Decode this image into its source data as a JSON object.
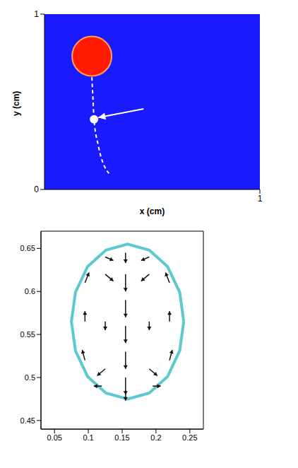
{
  "chart_data": [
    {
      "type": "schematic",
      "xlabel": "x (cm)",
      "ylabel": "y (cm)",
      "xlim": [
        0,
        1
      ],
      "ylim": [
        0,
        1
      ],
      "xticks": [
        1
      ],
      "yticks": [
        0,
        1
      ],
      "drop": {
        "x": 0.22,
        "y": 0.76
      },
      "trajectory": {
        "x": [
          0.22,
          0.225,
          0.23,
          0.25,
          0.3
        ],
        "y": [
          0.64,
          0.52,
          0.4,
          0.25,
          0.09
        ],
        "line_style": "dashed"
      },
      "tracked_point": {
        "x": 0.23,
        "y": 0.4
      },
      "arrow": {
        "x": [
          0.46,
          0.25
        ],
        "y": [
          0.46,
          0.41
        ]
      }
    },
    {
      "type": "quiver",
      "xlim": [
        0.03,
        0.27
      ],
      "ylim": [
        0.44,
        0.67
      ],
      "xticks": [
        0.05,
        0.1,
        0.15,
        0.2,
        0.25
      ],
      "yticks": [
        0.45,
        0.5,
        0.55,
        0.6,
        0.65
      ],
      "boundary": {
        "x": [
          0.241,
          0.235,
          0.217,
          0.19,
          0.158,
          0.126,
          0.099,
          0.081,
          0.075,
          0.081,
          0.099,
          0.126,
          0.158,
          0.19,
          0.217,
          0.235,
          0.241
        ],
        "y": [
          0.565,
          0.599,
          0.629,
          0.648,
          0.655,
          0.648,
          0.629,
          0.599,
          0.565,
          0.531,
          0.501,
          0.482,
          0.475,
          0.482,
          0.501,
          0.531,
          0.565
        ]
      },
      "vectors": {
        "x": [
          0.155,
          0.155,
          0.155,
          0.155,
          0.155,
          0.125,
          0.125,
          0.125,
          0.19,
          0.19,
          0.19,
          0.095,
          0.095,
          0.095,
          0.22,
          0.22,
          0.22,
          0.155,
          0.155,
          0.125,
          0.19,
          0.12,
          0.195
        ],
        "y": [
          0.5,
          0.53,
          0.56,
          0.59,
          0.62,
          0.51,
          0.565,
          0.62,
          0.51,
          0.565,
          0.62,
          0.52,
          0.565,
          0.61,
          0.52,
          0.565,
          0.61,
          0.645,
          0.485,
          0.64,
          0.64,
          0.49,
          0.49
        ],
        "u": [
          0,
          0,
          0,
          0,
          0,
          -0.006,
          0,
          0.006,
          0.006,
          0,
          -0.006,
          -0.002,
          0,
          0.003,
          0.002,
          0,
          -0.003,
          0,
          0,
          0.006,
          -0.006,
          -0.006,
          0.006
        ],
        "v": [
          -0.01,
          -0.01,
          -0.01,
          -0.01,
          -0.01,
          -0.004,
          -0.005,
          -0.004,
          -0.004,
          -0.005,
          -0.004,
          0.006,
          0.006,
          0.006,
          0.006,
          0.006,
          0.006,
          -0.006,
          -0.006,
          -0.002,
          -0.002,
          0,
          0
        ]
      }
    }
  ]
}
